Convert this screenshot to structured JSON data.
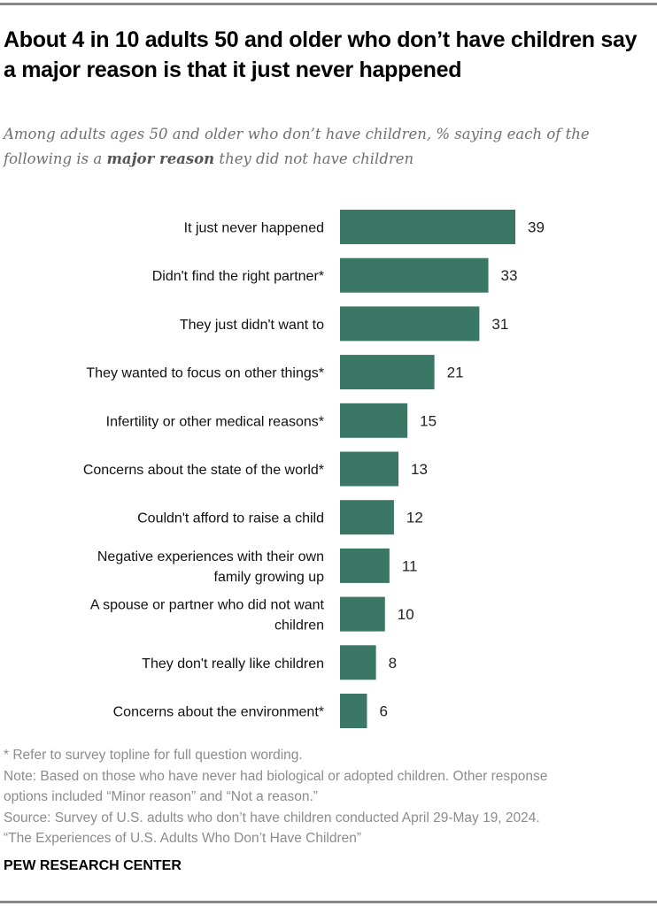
{
  "header": {
    "title": "About 4 in 10 adults 50 and older who don’t have children say a major reason is that it just never happened",
    "subtitle_before": "Among adults ages 50 and older who don’t have children, % saying each of the following is a ",
    "subtitle_bold": "major reason",
    "subtitle_after": " they did not have children"
  },
  "chart_data": {
    "type": "bar",
    "orientation": "horizontal",
    "title": "About 4 in 10 adults 50 and older who don’t have children say a major reason is that it just never happened",
    "xlabel": "",
    "ylabel": "",
    "xlim": [
      0,
      39
    ],
    "grid": false,
    "categories": [
      "It just never happened",
      "Didn't find the right partner*",
      "They just didn't want to",
      "They wanted to focus on other things*",
      "Infertility or other medical reasons*",
      "Concerns about the state of the world*",
      "Couldn't afford to raise a child",
      "Negative experiences with their own family growing up",
      "A spouse or partner who did not want children",
      "They don't really like children",
      "Concerns about the environment*"
    ],
    "label_lines": [
      [
        "It just never happened"
      ],
      [
        "Didn't find the right partner*"
      ],
      [
        "They just didn't want to"
      ],
      [
        "They wanted to focus on other things*"
      ],
      [
        "Infertility or other medical reasons*"
      ],
      [
        "Concerns about the state of the world*"
      ],
      [
        "Couldn't afford to raise a child"
      ],
      [
        "Negative experiences with their own",
        "family growing up"
      ],
      [
        "A spouse or partner who did not want",
        "children"
      ],
      [
        "They don't really like children"
      ],
      [
        "Concerns about the environment*"
      ]
    ],
    "values": [
      39,
      33,
      31,
      21,
      15,
      13,
      12,
      11,
      10,
      8,
      6
    ],
    "color": "#3a7764"
  },
  "notes": {
    "asterisk": "* Refer to survey topline for full question wording.",
    "note_line1": "Note: Based on those who have never had biological or adopted children. Other response",
    "note_line2": "options included “Minor reason” and “Not a reason.”",
    "source_line1": "Source: Survey of U.S. adults who don’t have children conducted April 29-May 19, 2024.",
    "source_line2": "“The Experiences of U.S. Adults Who Don’t Have Children”"
  },
  "brand": "PEW RESEARCH CENTER"
}
